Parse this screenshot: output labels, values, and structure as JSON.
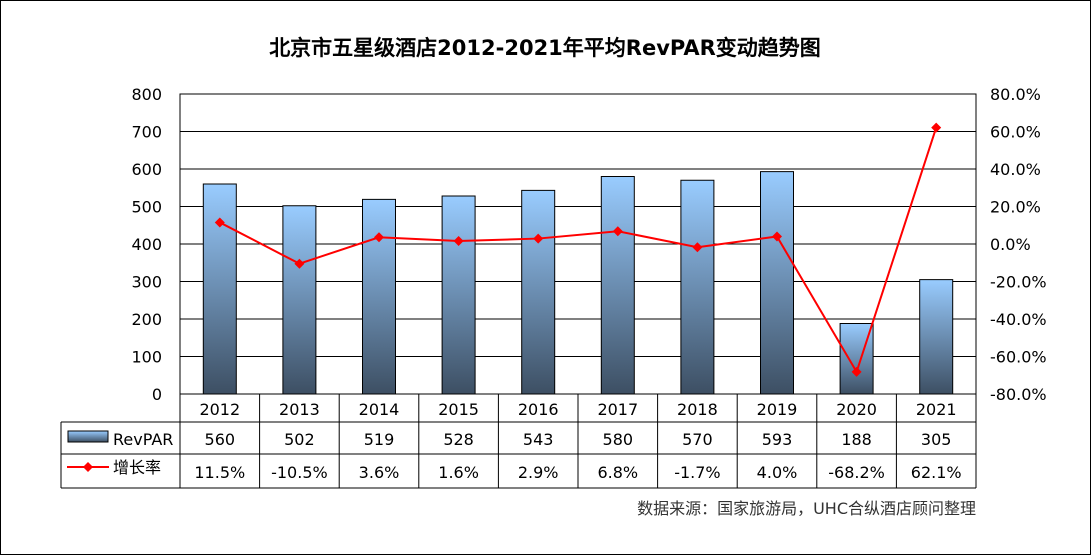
{
  "chart_data": {
    "type": "bar+line",
    "title": "北京市五星级酒店2012-2021年平均RevPAR变动趋势图",
    "source": "数据来源：国家旅游局，UHC合纵酒店顾问整理",
    "categories": [
      "2012",
      "2013",
      "2014",
      "2015",
      "2016",
      "2017",
      "2018",
      "2019",
      "2020",
      "2021"
    ],
    "series": [
      {
        "name": "RevPAR",
        "type": "bar",
        "axis": "left",
        "values": [
          560,
          502,
          519,
          528,
          543,
          580,
          570,
          593,
          188,
          305
        ],
        "labels": [
          "560",
          "502",
          "519",
          "528",
          "543",
          "580",
          "570",
          "593",
          "188",
          "305"
        ]
      },
      {
        "name": "增长率",
        "type": "line",
        "axis": "right",
        "values": [
          11.5,
          -10.5,
          3.6,
          1.6,
          2.9,
          6.8,
          -1.7,
          4.0,
          -68.2,
          62.1
        ],
        "labels": [
          "11.5%",
          "-10.5%",
          "3.6%",
          "1.6%",
          "2.9%",
          "6.8%",
          "-1.7%",
          "4.0%",
          "-68.2%",
          "62.1%"
        ]
      }
    ],
    "y_left": {
      "range": [
        0,
        800
      ],
      "ticks": [
        "0",
        "100",
        "200",
        "300",
        "400",
        "500",
        "600",
        "700",
        "800"
      ]
    },
    "y_right": {
      "range": [
        -80,
        80
      ],
      "ticks": [
        "-80.0%",
        "-60.0%",
        "-40.0%",
        "-20.0%",
        "0.0%",
        "20.0%",
        "40.0%",
        "60.0%",
        "80.0%"
      ]
    },
    "grid": true,
    "legend": "data-table",
    "colors": {
      "bar_top": "#99ccff",
      "bar_bottom": "#3d4f63",
      "line": "#ff0000",
      "marker": "#ff0000"
    }
  }
}
